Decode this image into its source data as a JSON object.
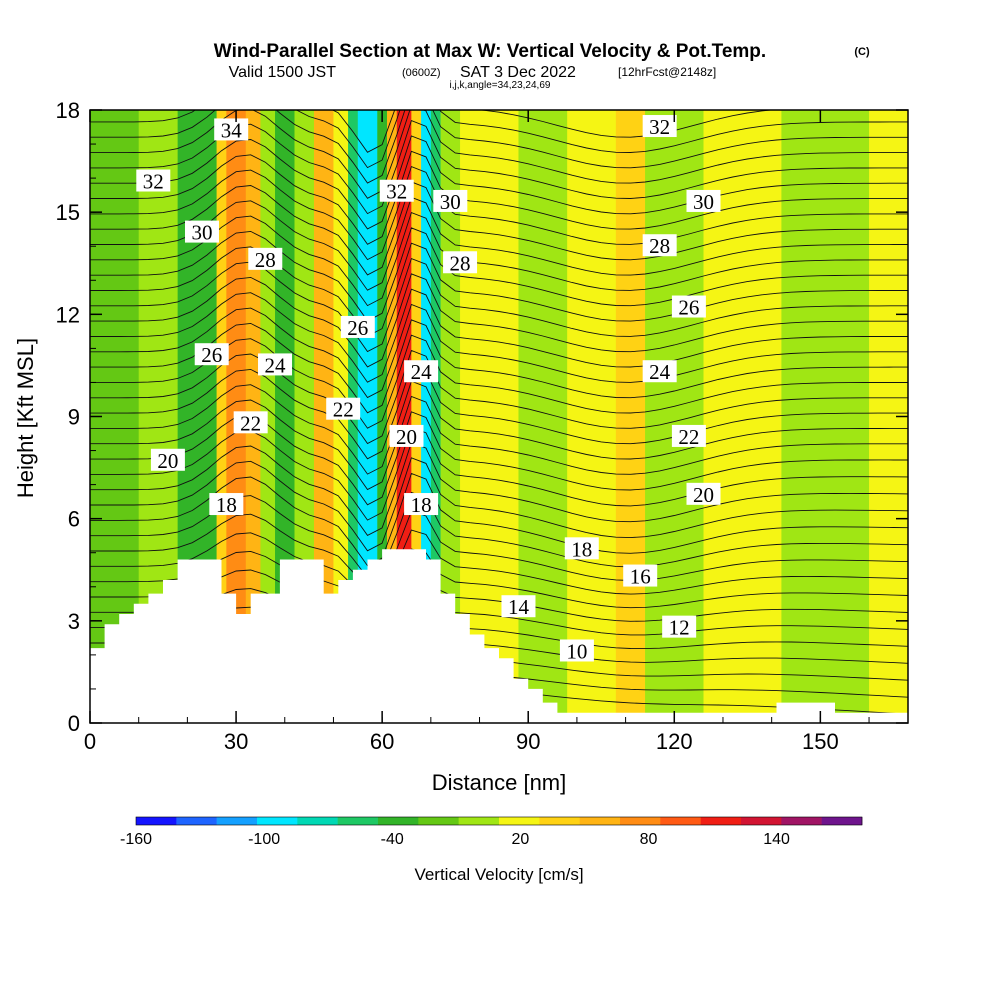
{
  "chart_data": {
    "type": "contour",
    "title": "Wind-Parallel Section at Max W: Vertical Velocity & Pot.Temp.",
    "copyright": "(C)",
    "subtitle_valid": "Valid 1500 JST",
    "subtitle_utc": "(0600Z)",
    "subtitle_date": "SAT 3 Dec 2022",
    "subtitle_fcst": "[12hrFcst@2148z]",
    "subtitle_indices": "i,j,k,angle=34,23,24,69",
    "xlabel": "Distance [nm]",
    "ylabel": "Height [Kft MSL]",
    "xlim": [
      0,
      168
    ],
    "ylim": [
      0,
      18
    ],
    "x_ticks": [
      0,
      30,
      60,
      90,
      120,
      150
    ],
    "y_ticks": [
      0,
      3,
      6,
      9,
      12,
      15,
      18
    ],
    "colorbar": {
      "label": "Vertical Velocity [cm/s]",
      "tick_labels": [
        "-160",
        "-100",
        "-40",
        "20",
        "80",
        "140"
      ],
      "tick_values": [
        -160,
        -100,
        -40,
        20,
        80,
        140
      ],
      "range": [
        -160,
        180
      ],
      "colors": [
        "#1414ff",
        "#1e64ff",
        "#14a0ff",
        "#00e6ff",
        "#00d8b4",
        "#1ec864",
        "#32b428",
        "#64c814",
        "#a0e614",
        "#f5f514",
        "#ffd214",
        "#ffb414",
        "#ff8c14",
        "#ff5a14",
        "#f01e14",
        "#d21432",
        "#a01464",
        "#6e148c"
      ]
    },
    "vertical_velocity_bands": [
      {
        "x0": 0,
        "x1": 4,
        "w": -10
      },
      {
        "x0": 4,
        "x1": 10,
        "w": -20
      },
      {
        "x0": 10,
        "x1": 18,
        "w": 0
      },
      {
        "x0": 18,
        "x1": 22,
        "w": -30
      },
      {
        "x0": 22,
        "x1": 26,
        "w": -40
      },
      {
        "x0": 26,
        "x1": 28,
        "w": 40
      },
      {
        "x0": 28,
        "x1": 32,
        "w": 80
      },
      {
        "x0": 32,
        "x1": 35,
        "w": 60
      },
      {
        "x0": 35,
        "x1": 38,
        "w": 0
      },
      {
        "x0": 38,
        "x1": 42,
        "w": -40
      },
      {
        "x0": 42,
        "x1": 46,
        "w": 0
      },
      {
        "x0": 46,
        "x1": 50,
        "w": 60
      },
      {
        "x0": 50,
        "x1": 53,
        "w": 20
      },
      {
        "x0": 53,
        "x1": 55,
        "w": -60
      },
      {
        "x0": 55,
        "x1": 59,
        "w": -100
      },
      {
        "x0": 59,
        "x1": 61,
        "w": -40
      },
      {
        "x0": 61,
        "x1": 63,
        "w": 60
      },
      {
        "x0": 63,
        "x1": 66,
        "w": 120
      },
      {
        "x0": 66,
        "x1": 68,
        "w": 30
      },
      {
        "x0": 68,
        "x1": 70,
        "w": -100
      },
      {
        "x0": 70,
        "x1": 72,
        "w": -50
      },
      {
        "x0": 72,
        "x1": 76,
        "w": 0
      },
      {
        "x0": 76,
        "x1": 88,
        "w": 20
      },
      {
        "x0": 88,
        "x1": 98,
        "w": 0
      },
      {
        "x0": 98,
        "x1": 108,
        "w": 20
      },
      {
        "x0": 108,
        "x1": 114,
        "w": 40
      },
      {
        "x0": 114,
        "x1": 126,
        "w": 0
      },
      {
        "x0": 126,
        "x1": 142,
        "w": 20
      },
      {
        "x0": 142,
        "x1": 160,
        "w": 0
      },
      {
        "x0": 160,
        "x1": 168,
        "w": 20
      }
    ],
    "terrain_profile": [
      [
        0,
        2.2
      ],
      [
        3,
        2.2
      ],
      [
        3,
        2.9
      ],
      [
        6,
        2.9
      ],
      [
        6,
        3.2
      ],
      [
        9,
        3.2
      ],
      [
        9,
        3.5
      ],
      [
        12,
        3.5
      ],
      [
        12,
        3.8
      ],
      [
        15,
        3.8
      ],
      [
        15,
        4.2
      ],
      [
        18,
        4.2
      ],
      [
        18,
        4.8
      ],
      [
        27,
        4.8
      ],
      [
        27,
        3.8
      ],
      [
        30,
        3.8
      ],
      [
        30,
        3.2
      ],
      [
        33,
        3.2
      ],
      [
        33,
        3.8
      ],
      [
        39,
        3.8
      ],
      [
        39,
        4.8
      ],
      [
        48,
        4.8
      ],
      [
        48,
        3.8
      ],
      [
        51,
        3.8
      ],
      [
        51,
        4.2
      ],
      [
        54,
        4.2
      ],
      [
        54,
        4.5
      ],
      [
        57,
        4.5
      ],
      [
        57,
        4.8
      ],
      [
        60,
        4.8
      ],
      [
        60,
        5.1
      ],
      [
        69,
        5.1
      ],
      [
        69,
        4.8
      ],
      [
        72,
        4.8
      ],
      [
        72,
        3.8
      ],
      [
        75,
        3.8
      ],
      [
        75,
        3.2
      ],
      [
        78,
        3.2
      ],
      [
        78,
        2.6
      ],
      [
        81,
        2.6
      ],
      [
        81,
        2.2
      ],
      [
        84,
        2.2
      ],
      [
        84,
        1.9
      ],
      [
        87,
        1.9
      ],
      [
        87,
        1.3
      ],
      [
        90,
        1.3
      ],
      [
        90,
        1.0
      ],
      [
        93,
        1.0
      ],
      [
        93,
        0.6
      ],
      [
        96,
        0.6
      ],
      [
        96,
        0.3
      ],
      [
        141,
        0.3
      ],
      [
        141,
        0.6
      ],
      [
        153,
        0.6
      ],
      [
        153,
        0.3
      ],
      [
        168,
        0.3
      ]
    ],
    "theta_contour_levels": [
      10,
      12,
      14,
      16,
      18,
      20,
      22,
      24,
      26,
      28,
      30,
      32,
      34
    ],
    "theta_contour_labels": [
      {
        "text": "34",
        "x": 29,
        "y": 17.4
      },
      {
        "text": "32",
        "x": 13,
        "y": 15.9
      },
      {
        "text": "30",
        "x": 23,
        "y": 14.4
      },
      {
        "text": "28",
        "x": 36,
        "y": 13.6
      },
      {
        "text": "26",
        "x": 25,
        "y": 10.8
      },
      {
        "text": "24",
        "x": 38,
        "y": 10.5
      },
      {
        "text": "22",
        "x": 33,
        "y": 8.8
      },
      {
        "text": "20",
        "x": 16,
        "y": 7.7
      },
      {
        "text": "18",
        "x": 28,
        "y": 6.4
      },
      {
        "text": "26",
        "x": 55,
        "y": 11.6
      },
      {
        "text": "22",
        "x": 52,
        "y": 9.2
      },
      {
        "text": "32",
        "x": 63,
        "y": 15.6
      },
      {
        "text": "30",
        "x": 74,
        "y": 15.3
      },
      {
        "text": "28",
        "x": 76,
        "y": 13.5
      },
      {
        "text": "24",
        "x": 68,
        "y": 10.3
      },
      {
        "text": "20",
        "x": 65,
        "y": 8.4
      },
      {
        "text": "18",
        "x": 68,
        "y": 6.4
      },
      {
        "text": "32",
        "x": 117,
        "y": 17.5
      },
      {
        "text": "30",
        "x": 126,
        "y": 15.3
      },
      {
        "text": "28",
        "x": 117,
        "y": 14.0
      },
      {
        "text": "26",
        "x": 123,
        "y": 12.2
      },
      {
        "text": "24",
        "x": 117,
        "y": 10.3
      },
      {
        "text": "22",
        "x": 123,
        "y": 8.4
      },
      {
        "text": "20",
        "x": 126,
        "y": 6.7
      },
      {
        "text": "18",
        "x": 101,
        "y": 5.1
      },
      {
        "text": "16",
        "x": 113,
        "y": 4.3
      },
      {
        "text": "14",
        "x": 88,
        "y": 3.4
      },
      {
        "text": "12",
        "x": 121,
        "y": 2.8
      },
      {
        "text": "10",
        "x": 100,
        "y": 2.1
      }
    ]
  }
}
